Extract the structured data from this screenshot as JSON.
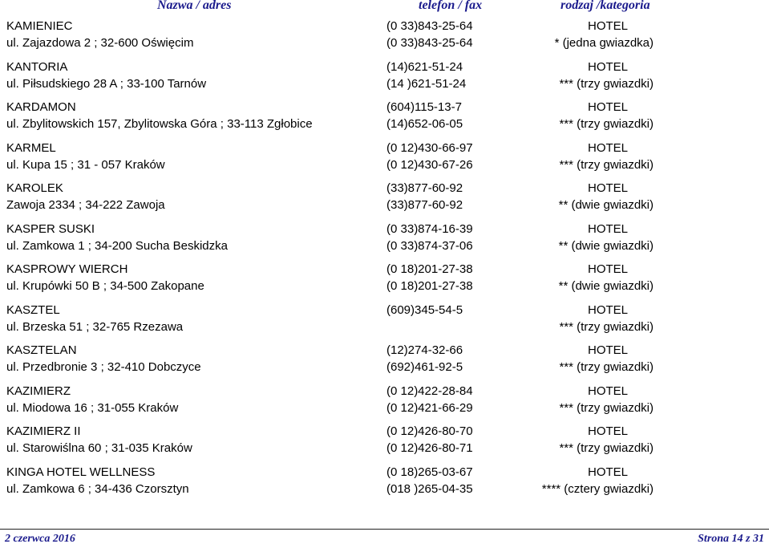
{
  "header": {
    "name_col": "Nazwa / adres",
    "phone_col": "telefon / fax",
    "type_col": "rodzaj /kategoria"
  },
  "entries": [
    {
      "name": "KAMIENIEC",
      "address": "ul. Zajazdowa 2 ;  32-600 Oświęcim",
      "phone1": "(0 33)843-25-64",
      "phone2": "(0 33)843-25-64",
      "type": "HOTEL",
      "category": "* (jedna gwiazdka)"
    },
    {
      "name": "KANTORIA",
      "address": "ul. Piłsudskiego 28 A ;  33-100 Tarnów",
      "phone1": "(14)621-51-24",
      "phone2": "(14 )621-51-24",
      "type": "HOTEL",
      "category": "*** (trzy gwiazdki)"
    },
    {
      "name": "KARDAMON",
      "address": "ul. Zbylitowskich 157, Zbylitowska Góra ;  33-113 Zgłobice",
      "phone1": "(604)115-13-7",
      "phone2": "(14)652-06-05",
      "type": "HOTEL",
      "category": "*** (trzy gwiazdki)"
    },
    {
      "name": "KARMEL",
      "address": "ul. Kupa 15 ;  31 - 057 Kraków",
      "phone1": "(0 12)430-66-97",
      "phone2": "(0 12)430-67-26",
      "type": "HOTEL",
      "category": "*** (trzy gwiazdki)"
    },
    {
      "name": "KAROLEK",
      "address": "Zawoja 2334 ;  34-222 Zawoja",
      "phone1": "(33)877-60-92",
      "phone2": "(33)877-60-92",
      "type": "HOTEL",
      "category": "** (dwie gwiazdki)"
    },
    {
      "name": "KASPER SUSKI",
      "address": "ul. Zamkowa 1 ;  34-200 Sucha Beskidzka",
      "phone1": "(0 33)874-16-39",
      "phone2": "(0 33)874-37-06",
      "type": "HOTEL",
      "category": "** (dwie gwiazdki)"
    },
    {
      "name": "KASPROWY WIERCH",
      "address": "ul. Krupówki 50 B ;  34-500 Zakopane",
      "phone1": "(0 18)201-27-38",
      "phone2": "(0 18)201-27-38",
      "type": "HOTEL",
      "category": "** (dwie gwiazdki)"
    },
    {
      "name": "KASZTEL",
      "address": "ul. Brzeska 51 ;  32-765 Rzezawa",
      "phone1": "(609)345-54-5",
      "phone2": "",
      "type": "HOTEL",
      "category": "*** (trzy gwiazdki)"
    },
    {
      "name": "KASZTELAN",
      "address": "ul. Przedbronie 3 ;  32-410 Dobczyce",
      "phone1": "(12)274-32-66",
      "phone2": "(692)461-92-5",
      "type": "HOTEL",
      "category": "*** (trzy gwiazdki)"
    },
    {
      "name": "KAZIMIERZ",
      "address": "ul. Miodowa 16 ;  31-055 Kraków",
      "phone1": "(0 12)422-28-84",
      "phone2": "(0 12)421-66-29",
      "type": "HOTEL",
      "category": "*** (trzy gwiazdki)"
    },
    {
      "name": "KAZIMIERZ II",
      "address": "ul. Starowiślna 60 ;  31-035 Kraków",
      "phone1": "(0 12)426-80-70",
      "phone2": "(0 12)426-80-71",
      "type": "HOTEL",
      "category": "*** (trzy gwiazdki)"
    },
    {
      "name": "KINGA HOTEL WELLNESS",
      "address": "ul. Zamkowa 6 ;  34-436 Czorsztyn",
      "phone1": "(0 18)265-03-67",
      "phone2": "(018 )265-04-35",
      "type": "HOTEL",
      "category": "**** (cztery gwiazdki)"
    }
  ],
  "footer": {
    "date": "2 czerwca 2016",
    "page": "Strona 14 z 31"
  }
}
